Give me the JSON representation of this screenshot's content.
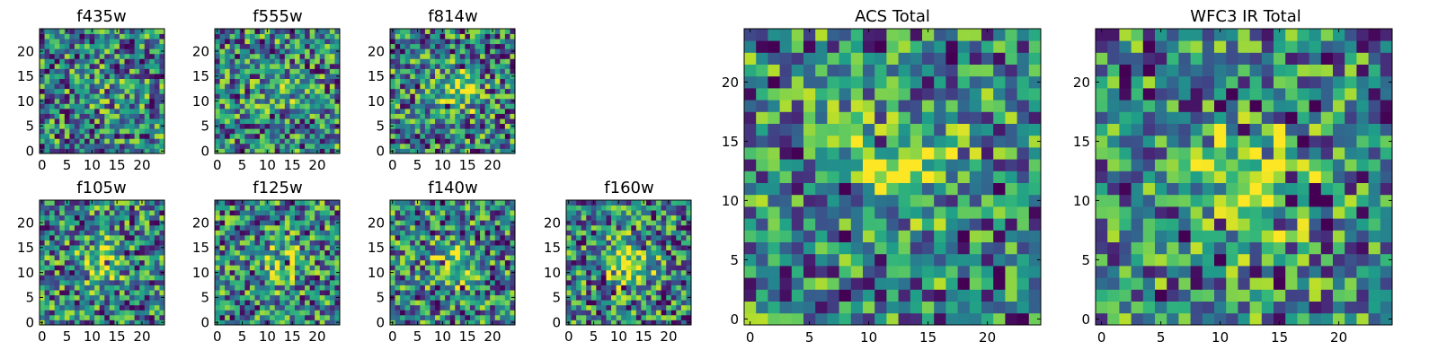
{
  "chart_data": [
    {
      "type": "heatmap",
      "title": "f435w",
      "size": 25,
      "xticks": [
        0,
        5,
        10,
        15,
        20
      ],
      "yticks": [
        0,
        5,
        10,
        15,
        20
      ],
      "blob": [
        12,
        12
      ],
      "blobStrength": 0.05,
      "seed": 1
    },
    {
      "type": "heatmap",
      "title": "f555w",
      "size": 25,
      "xticks": [
        0,
        5,
        10,
        15,
        20
      ],
      "yticks": [
        0,
        5,
        10,
        15,
        20
      ],
      "blob": [
        13,
        12
      ],
      "blobStrength": 0.25,
      "seed": 2
    },
    {
      "type": "heatmap",
      "title": "f814w",
      "size": 25,
      "xticks": [
        0,
        5,
        10,
        15,
        20
      ],
      "yticks": [
        0,
        5,
        10,
        15,
        20
      ],
      "blob": [
        13,
        12
      ],
      "blobStrength": 0.45,
      "seed": 3
    },
    {
      "type": "heatmap",
      "title": "f105w",
      "size": 25,
      "xticks": [
        0,
        5,
        10,
        15,
        20
      ],
      "yticks": [
        0,
        5,
        10,
        15,
        20
      ],
      "blob": [
        12,
        12
      ],
      "blobStrength": 0.35,
      "seed": 4
    },
    {
      "type": "heatmap",
      "title": "f125w",
      "size": 25,
      "xticks": [
        0,
        5,
        10,
        15,
        20
      ],
      "yticks": [
        0,
        5,
        10,
        15,
        20
      ],
      "blob": [
        13,
        12
      ],
      "blobStrength": 0.4,
      "seed": 5
    },
    {
      "type": "heatmap",
      "title": "f140w",
      "size": 25,
      "xticks": [
        0,
        5,
        10,
        15,
        20
      ],
      "yticks": [
        0,
        5,
        10,
        15,
        20
      ],
      "blob": [
        12,
        12
      ],
      "blobStrength": 0.45,
      "seed": 6
    },
    {
      "type": "heatmap",
      "title": "f160w",
      "size": 25,
      "xticks": [
        0,
        5,
        10,
        15,
        20
      ],
      "yticks": [
        0,
        5,
        10,
        15,
        20
      ],
      "blob": [
        12,
        12
      ],
      "blobStrength": 0.5,
      "seed": 7
    },
    {
      "type": "heatmap",
      "title": "ACS Total",
      "size": 25,
      "xticks": [
        0,
        5,
        10,
        15,
        20
      ],
      "yticks": [
        0,
        5,
        10,
        15,
        20
      ],
      "blob": [
        13,
        13
      ],
      "blobStrength": 0.45,
      "seed": 8
    },
    {
      "type": "heatmap",
      "title": "WFC3 IR Total",
      "size": 25,
      "xticks": [
        0,
        5,
        10,
        15,
        20
      ],
      "yticks": [
        0,
        5,
        10,
        15,
        20
      ],
      "blob": [
        13,
        12
      ],
      "blobStrength": 0.6,
      "seed": 9
    }
  ]
}
